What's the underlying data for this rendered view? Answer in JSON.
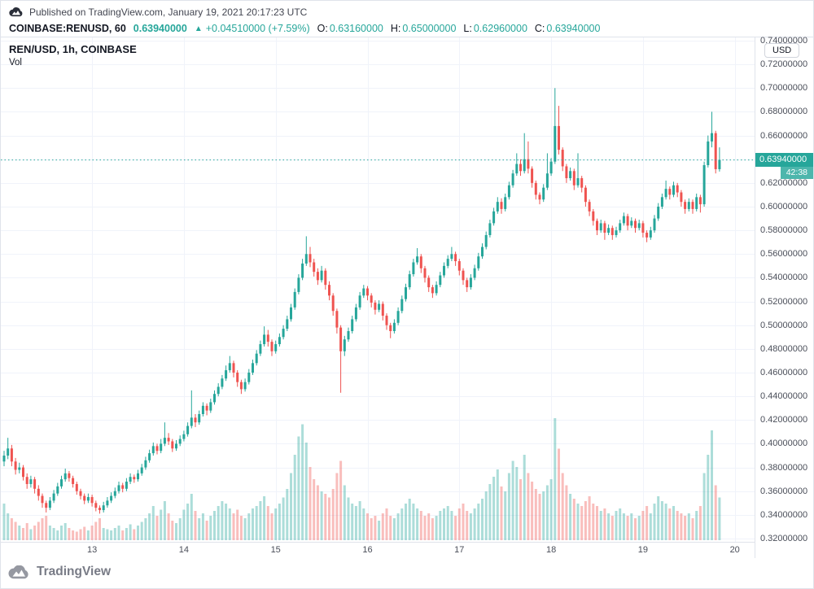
{
  "page": {
    "published_line": "Published on TradingView.com, January 19, 2021 20:17:23 UTC",
    "footer_brand": "TradingView"
  },
  "symbol_header": {
    "symbol_text": "COINBASE:RENUSD, 60",
    "last_price": "0.63940000",
    "change_arrow": "▲",
    "change_text": "+0.04510000 (+7.59%)",
    "ohlc": [
      {
        "label": "O:",
        "value": "0.63160000"
      },
      {
        "label": "H:",
        "value": "0.65000000"
      },
      {
        "label": "L:",
        "value": "0.62960000"
      },
      {
        "label": "C:",
        "value": "0.63940000"
      }
    ]
  },
  "chart_overlay": {
    "legend": "REN/USD, 1h, COINBASE",
    "volume_label": "Vol"
  },
  "price_axis": {
    "currency_button": "USD",
    "current_price_label": "0.63940000",
    "countdown": "42:38"
  },
  "chart_data": {
    "type": "candlestick_with_volume",
    "symbol": "REN/USD",
    "interval": "1h",
    "exchange": "COINBASE",
    "current_price": 0.6394,
    "y_axis": {
      "min": 0.32,
      "max": 0.74,
      "step": 0.02,
      "decimals": 8
    },
    "x_ticks": [
      {
        "index": 23,
        "label": "13"
      },
      {
        "index": 47,
        "label": "14"
      },
      {
        "index": 71,
        "label": "15"
      },
      {
        "index": 95,
        "label": "16"
      },
      {
        "index": 119,
        "label": "17"
      },
      {
        "index": 143,
        "label": "18"
      },
      {
        "index": 167,
        "label": "19"
      },
      {
        "index": 191,
        "label": "20"
      }
    ],
    "colors": {
      "up": "#26a69a",
      "down": "#ef5350",
      "accent": "#26a69a",
      "countdown_bg": "#4db6ac",
      "volume_opacity": 0.38,
      "grid": "#f0f3fa",
      "axis_line": "#e0e3eb",
      "axis_text": "#4a4e59"
    },
    "candles": [
      [
        0.385,
        0.394,
        0.381,
        0.39,
        0.3
      ],
      [
        0.39,
        0.405,
        0.387,
        0.396,
        0.22
      ],
      [
        0.396,
        0.399,
        0.381,
        0.385,
        0.18
      ],
      [
        0.385,
        0.388,
        0.374,
        0.378,
        0.15
      ],
      [
        0.378,
        0.384,
        0.375,
        0.38,
        0.12
      ],
      [
        0.38,
        0.382,
        0.369,
        0.372,
        0.1
      ],
      [
        0.372,
        0.375,
        0.362,
        0.366,
        0.14
      ],
      [
        0.366,
        0.373,
        0.363,
        0.37,
        0.09
      ],
      [
        0.37,
        0.372,
        0.358,
        0.362,
        0.12
      ],
      [
        0.362,
        0.365,
        0.352,
        0.356,
        0.15
      ],
      [
        0.356,
        0.358,
        0.346,
        0.35,
        0.18
      ],
      [
        0.35,
        0.352,
        0.342,
        0.346,
        0.2
      ],
      [
        0.346,
        0.355,
        0.344,
        0.352,
        0.12
      ],
      [
        0.352,
        0.361,
        0.35,
        0.358,
        0.1
      ],
      [
        0.358,
        0.367,
        0.356,
        0.364,
        0.08
      ],
      [
        0.364,
        0.373,
        0.362,
        0.37,
        0.12
      ],
      [
        0.37,
        0.379,
        0.368,
        0.375,
        0.14
      ],
      [
        0.375,
        0.377,
        0.368,
        0.371,
        0.1
      ],
      [
        0.371,
        0.373,
        0.363,
        0.366,
        0.08
      ],
      [
        0.366,
        0.368,
        0.357,
        0.36,
        0.07
      ],
      [
        0.36,
        0.362,
        0.353,
        0.356,
        0.09
      ],
      [
        0.356,
        0.358,
        0.349,
        0.352,
        0.11
      ],
      [
        0.352,
        0.358,
        0.35,
        0.355,
        0.08
      ],
      [
        0.355,
        0.357,
        0.347,
        0.35,
        0.12
      ],
      [
        0.35,
        0.352,
        0.343,
        0.346,
        0.15
      ],
      [
        0.346,
        0.348,
        0.341,
        0.344,
        0.18
      ],
      [
        0.344,
        0.351,
        0.342,
        0.348,
        0.1
      ],
      [
        0.348,
        0.355,
        0.346,
        0.352,
        0.09
      ],
      [
        0.352,
        0.359,
        0.35,
        0.356,
        0.08
      ],
      [
        0.356,
        0.363,
        0.354,
        0.36,
        0.1
      ],
      [
        0.36,
        0.368,
        0.358,
        0.365,
        0.12
      ],
      [
        0.365,
        0.367,
        0.359,
        0.362,
        0.08
      ],
      [
        0.362,
        0.371,
        0.36,
        0.368,
        0.1
      ],
      [
        0.368,
        0.375,
        0.366,
        0.372,
        0.13
      ],
      [
        0.372,
        0.374,
        0.367,
        0.37,
        0.09
      ],
      [
        0.37,
        0.378,
        0.368,
        0.375,
        0.12
      ],
      [
        0.375,
        0.383,
        0.373,
        0.38,
        0.15
      ],
      [
        0.38,
        0.389,
        0.378,
        0.386,
        0.18
      ],
      [
        0.386,
        0.395,
        0.384,
        0.392,
        0.22
      ],
      [
        0.392,
        0.401,
        0.39,
        0.398,
        0.28
      ],
      [
        0.398,
        0.4,
        0.391,
        0.394,
        0.2
      ],
      [
        0.394,
        0.404,
        0.392,
        0.4,
        0.25
      ],
      [
        0.4,
        0.418,
        0.398,
        0.405,
        0.32
      ],
      [
        0.405,
        0.409,
        0.399,
        0.402,
        0.22
      ],
      [
        0.402,
        0.404,
        0.393,
        0.396,
        0.16
      ],
      [
        0.396,
        0.403,
        0.394,
        0.4,
        0.14
      ],
      [
        0.4,
        0.407,
        0.398,
        0.404,
        0.18
      ],
      [
        0.404,
        0.411,
        0.402,
        0.408,
        0.25
      ],
      [
        0.408,
        0.418,
        0.406,
        0.415,
        0.3
      ],
      [
        0.415,
        0.445,
        0.413,
        0.422,
        0.38
      ],
      [
        0.422,
        0.425,
        0.414,
        0.418,
        0.24
      ],
      [
        0.418,
        0.428,
        0.416,
        0.425,
        0.18
      ],
      [
        0.425,
        0.435,
        0.423,
        0.432,
        0.22
      ],
      [
        0.432,
        0.434,
        0.424,
        0.428,
        0.16
      ],
      [
        0.428,
        0.438,
        0.426,
        0.435,
        0.2
      ],
      [
        0.435,
        0.445,
        0.433,
        0.442,
        0.24
      ],
      [
        0.442,
        0.451,
        0.44,
        0.448,
        0.28
      ],
      [
        0.448,
        0.458,
        0.446,
        0.455,
        0.32
      ],
      [
        0.455,
        0.466,
        0.453,
        0.462,
        0.3
      ],
      [
        0.462,
        0.474,
        0.46,
        0.468,
        0.26
      ],
      [
        0.468,
        0.47,
        0.456,
        0.46,
        0.22
      ],
      [
        0.46,
        0.462,
        0.448,
        0.452,
        0.25
      ],
      [
        0.452,
        0.454,
        0.442,
        0.446,
        0.2
      ],
      [
        0.446,
        0.455,
        0.444,
        0.452,
        0.18
      ],
      [
        0.452,
        0.463,
        0.45,
        0.46,
        0.22
      ],
      [
        0.46,
        0.471,
        0.458,
        0.468,
        0.26
      ],
      [
        0.468,
        0.479,
        0.466,
        0.476,
        0.28
      ],
      [
        0.476,
        0.487,
        0.474,
        0.484,
        0.32
      ],
      [
        0.484,
        0.499,
        0.482,
        0.492,
        0.36
      ],
      [
        0.492,
        0.496,
        0.482,
        0.486,
        0.28
      ],
      [
        0.486,
        0.488,
        0.474,
        0.478,
        0.22
      ],
      [
        0.478,
        0.487,
        0.476,
        0.484,
        0.26
      ],
      [
        0.484,
        0.493,
        0.482,
        0.49,
        0.3
      ],
      [
        0.49,
        0.5,
        0.488,
        0.497,
        0.35
      ],
      [
        0.497,
        0.508,
        0.495,
        0.505,
        0.42
      ],
      [
        0.505,
        0.518,
        0.503,
        0.515,
        0.55
      ],
      [
        0.515,
        0.531,
        0.513,
        0.528,
        0.7
      ],
      [
        0.528,
        0.543,
        0.526,
        0.54,
        0.85
      ],
      [
        0.54,
        0.556,
        0.538,
        0.552,
        0.95
      ],
      [
        0.552,
        0.575,
        0.55,
        0.56,
        0.8
      ],
      [
        0.56,
        0.566,
        0.549,
        0.553,
        0.6
      ],
      [
        0.553,
        0.556,
        0.541,
        0.545,
        0.5
      ],
      [
        0.545,
        0.548,
        0.534,
        0.538,
        0.45
      ],
      [
        0.538,
        0.55,
        0.536,
        0.546,
        0.4
      ],
      [
        0.546,
        0.548,
        0.53,
        0.534,
        0.38
      ],
      [
        0.534,
        0.537,
        0.521,
        0.525,
        0.35
      ],
      [
        0.525,
        0.527,
        0.508,
        0.512,
        0.42
      ],
      [
        0.512,
        0.514,
        0.493,
        0.498,
        0.55
      ],
      [
        0.498,
        0.5,
        0.443,
        0.478,
        0.65
      ],
      [
        0.478,
        0.491,
        0.474,
        0.488,
        0.45
      ],
      [
        0.488,
        0.498,
        0.486,
        0.495,
        0.35
      ],
      [
        0.495,
        0.508,
        0.493,
        0.505,
        0.3
      ],
      [
        0.505,
        0.518,
        0.503,
        0.515,
        0.28
      ],
      [
        0.515,
        0.528,
        0.513,
        0.525,
        0.32
      ],
      [
        0.525,
        0.534,
        0.523,
        0.531,
        0.26
      ],
      [
        0.531,
        0.533,
        0.521,
        0.525,
        0.22
      ],
      [
        0.525,
        0.527,
        0.515,
        0.519,
        0.18
      ],
      [
        0.519,
        0.521,
        0.509,
        0.513,
        0.2
      ],
      [
        0.513,
        0.521,
        0.511,
        0.518,
        0.16
      ],
      [
        0.518,
        0.52,
        0.504,
        0.508,
        0.22
      ],
      [
        0.508,
        0.51,
        0.496,
        0.5,
        0.26
      ],
      [
        0.5,
        0.502,
        0.489,
        0.495,
        0.2
      ],
      [
        0.495,
        0.505,
        0.493,
        0.502,
        0.18
      ],
      [
        0.502,
        0.515,
        0.5,
        0.512,
        0.22
      ],
      [
        0.512,
        0.525,
        0.51,
        0.522,
        0.26
      ],
      [
        0.522,
        0.535,
        0.52,
        0.532,
        0.3
      ],
      [
        0.532,
        0.546,
        0.53,
        0.543,
        0.34
      ],
      [
        0.543,
        0.556,
        0.541,
        0.553,
        0.3
      ],
      [
        0.553,
        0.565,
        0.551,
        0.558,
        0.26
      ],
      [
        0.558,
        0.56,
        0.544,
        0.548,
        0.24
      ],
      [
        0.548,
        0.55,
        0.536,
        0.54,
        0.2
      ],
      [
        0.54,
        0.542,
        0.528,
        0.532,
        0.22
      ],
      [
        0.532,
        0.534,
        0.523,
        0.527,
        0.18
      ],
      [
        0.527,
        0.537,
        0.525,
        0.534,
        0.2
      ],
      [
        0.534,
        0.545,
        0.532,
        0.542,
        0.24
      ],
      [
        0.542,
        0.553,
        0.54,
        0.55,
        0.26
      ],
      [
        0.55,
        0.559,
        0.548,
        0.556,
        0.28
      ],
      [
        0.556,
        0.566,
        0.554,
        0.56,
        0.24
      ],
      [
        0.56,
        0.562,
        0.55,
        0.554,
        0.2
      ],
      [
        0.554,
        0.556,
        0.542,
        0.546,
        0.26
      ],
      [
        0.546,
        0.548,
        0.534,
        0.538,
        0.3
      ],
      [
        0.538,
        0.54,
        0.528,
        0.532,
        0.24
      ],
      [
        0.532,
        0.543,
        0.53,
        0.54,
        0.22
      ],
      [
        0.54,
        0.551,
        0.538,
        0.548,
        0.26
      ],
      [
        0.548,
        0.561,
        0.546,
        0.558,
        0.3
      ],
      [
        0.558,
        0.569,
        0.556,
        0.566,
        0.34
      ],
      [
        0.566,
        0.579,
        0.564,
        0.576,
        0.4
      ],
      [
        0.576,
        0.589,
        0.574,
        0.586,
        0.46
      ],
      [
        0.586,
        0.599,
        0.584,
        0.596,
        0.52
      ],
      [
        0.596,
        0.608,
        0.594,
        0.604,
        0.58
      ],
      [
        0.604,
        0.607,
        0.594,
        0.598,
        0.44
      ],
      [
        0.598,
        0.611,
        0.596,
        0.608,
        0.4
      ],
      [
        0.608,
        0.621,
        0.606,
        0.618,
        0.55
      ],
      [
        0.618,
        0.631,
        0.616,
        0.628,
        0.65
      ],
      [
        0.628,
        0.645,
        0.626,
        0.636,
        0.6
      ],
      [
        0.636,
        0.64,
        0.626,
        0.63,
        0.5
      ],
      [
        0.63,
        0.662,
        0.628,
        0.64,
        0.7
      ],
      [
        0.64,
        0.655,
        0.628,
        0.632,
        0.55
      ],
      [
        0.632,
        0.634,
        0.616,
        0.62,
        0.48
      ],
      [
        0.62,
        0.622,
        0.606,
        0.61,
        0.42
      ],
      [
        0.61,
        0.612,
        0.602,
        0.606,
        0.38
      ],
      [
        0.606,
        0.619,
        0.604,
        0.616,
        0.4
      ],
      [
        0.616,
        0.645,
        0.614,
        0.628,
        0.45
      ],
      [
        0.628,
        0.641,
        0.626,
        0.638,
        0.5
      ],
      [
        0.638,
        0.7,
        0.636,
        0.668,
        1.0
      ],
      [
        0.668,
        0.685,
        0.644,
        0.648,
        0.75
      ],
      [
        0.648,
        0.65,
        0.63,
        0.634,
        0.55
      ],
      [
        0.634,
        0.636,
        0.62,
        0.624,
        0.45
      ],
      [
        0.624,
        0.633,
        0.622,
        0.63,
        0.38
      ],
      [
        0.63,
        0.632,
        0.614,
        0.618,
        0.34
      ],
      [
        0.618,
        0.645,
        0.616,
        0.624,
        0.3
      ],
      [
        0.624,
        0.626,
        0.612,
        0.616,
        0.28
      ],
      [
        0.616,
        0.618,
        0.6,
        0.604,
        0.32
      ],
      [
        0.604,
        0.606,
        0.592,
        0.596,
        0.36
      ],
      [
        0.596,
        0.598,
        0.584,
        0.588,
        0.3
      ],
      [
        0.588,
        0.59,
        0.576,
        0.58,
        0.28
      ],
      [
        0.58,
        0.589,
        0.578,
        0.586,
        0.24
      ],
      [
        0.586,
        0.588,
        0.572,
        0.578,
        0.26
      ],
      [
        0.578,
        0.585,
        0.576,
        0.582,
        0.22
      ],
      [
        0.582,
        0.584,
        0.572,
        0.576,
        0.2
      ],
      [
        0.576,
        0.583,
        0.574,
        0.58,
        0.24
      ],
      [
        0.58,
        0.589,
        0.578,
        0.586,
        0.26
      ],
      [
        0.586,
        0.595,
        0.584,
        0.592,
        0.22
      ],
      [
        0.592,
        0.594,
        0.58,
        0.584,
        0.2
      ],
      [
        0.584,
        0.591,
        0.582,
        0.588,
        0.22
      ],
      [
        0.588,
        0.59,
        0.578,
        0.582,
        0.18
      ],
      [
        0.582,
        0.589,
        0.58,
        0.586,
        0.2
      ],
      [
        0.586,
        0.588,
        0.574,
        0.578,
        0.24
      ],
      [
        0.578,
        0.58,
        0.57,
        0.574,
        0.28
      ],
      [
        0.574,
        0.583,
        0.572,
        0.58,
        0.22
      ],
      [
        0.58,
        0.593,
        0.578,
        0.59,
        0.3
      ],
      [
        0.59,
        0.603,
        0.588,
        0.6,
        0.36
      ],
      [
        0.6,
        0.611,
        0.598,
        0.608,
        0.32
      ],
      [
        0.608,
        0.622,
        0.606,
        0.615,
        0.3
      ],
      [
        0.615,
        0.617,
        0.606,
        0.61,
        0.26
      ],
      [
        0.61,
        0.621,
        0.608,
        0.618,
        0.28
      ],
      [
        0.618,
        0.62,
        0.608,
        0.612,
        0.24
      ],
      [
        0.612,
        0.614,
        0.6,
        0.604,
        0.22
      ],
      [
        0.604,
        0.606,
        0.594,
        0.598,
        0.2
      ],
      [
        0.598,
        0.607,
        0.596,
        0.604,
        0.22
      ],
      [
        0.604,
        0.606,
        0.594,
        0.598,
        0.18
      ],
      [
        0.598,
        0.611,
        0.596,
        0.608,
        0.24
      ],
      [
        0.608,
        0.61,
        0.595,
        0.602,
        0.28
      ],
      [
        0.602,
        0.638,
        0.6,
        0.635,
        0.55
      ],
      [
        0.635,
        0.66,
        0.633,
        0.655,
        0.7
      ],
      [
        0.655,
        0.68,
        0.65,
        0.662,
        0.9
      ],
      [
        0.662,
        0.664,
        0.628,
        0.6316,
        0.45
      ],
      [
        0.6316,
        0.65,
        0.6296,
        0.6394,
        0.35
      ]
    ]
  }
}
